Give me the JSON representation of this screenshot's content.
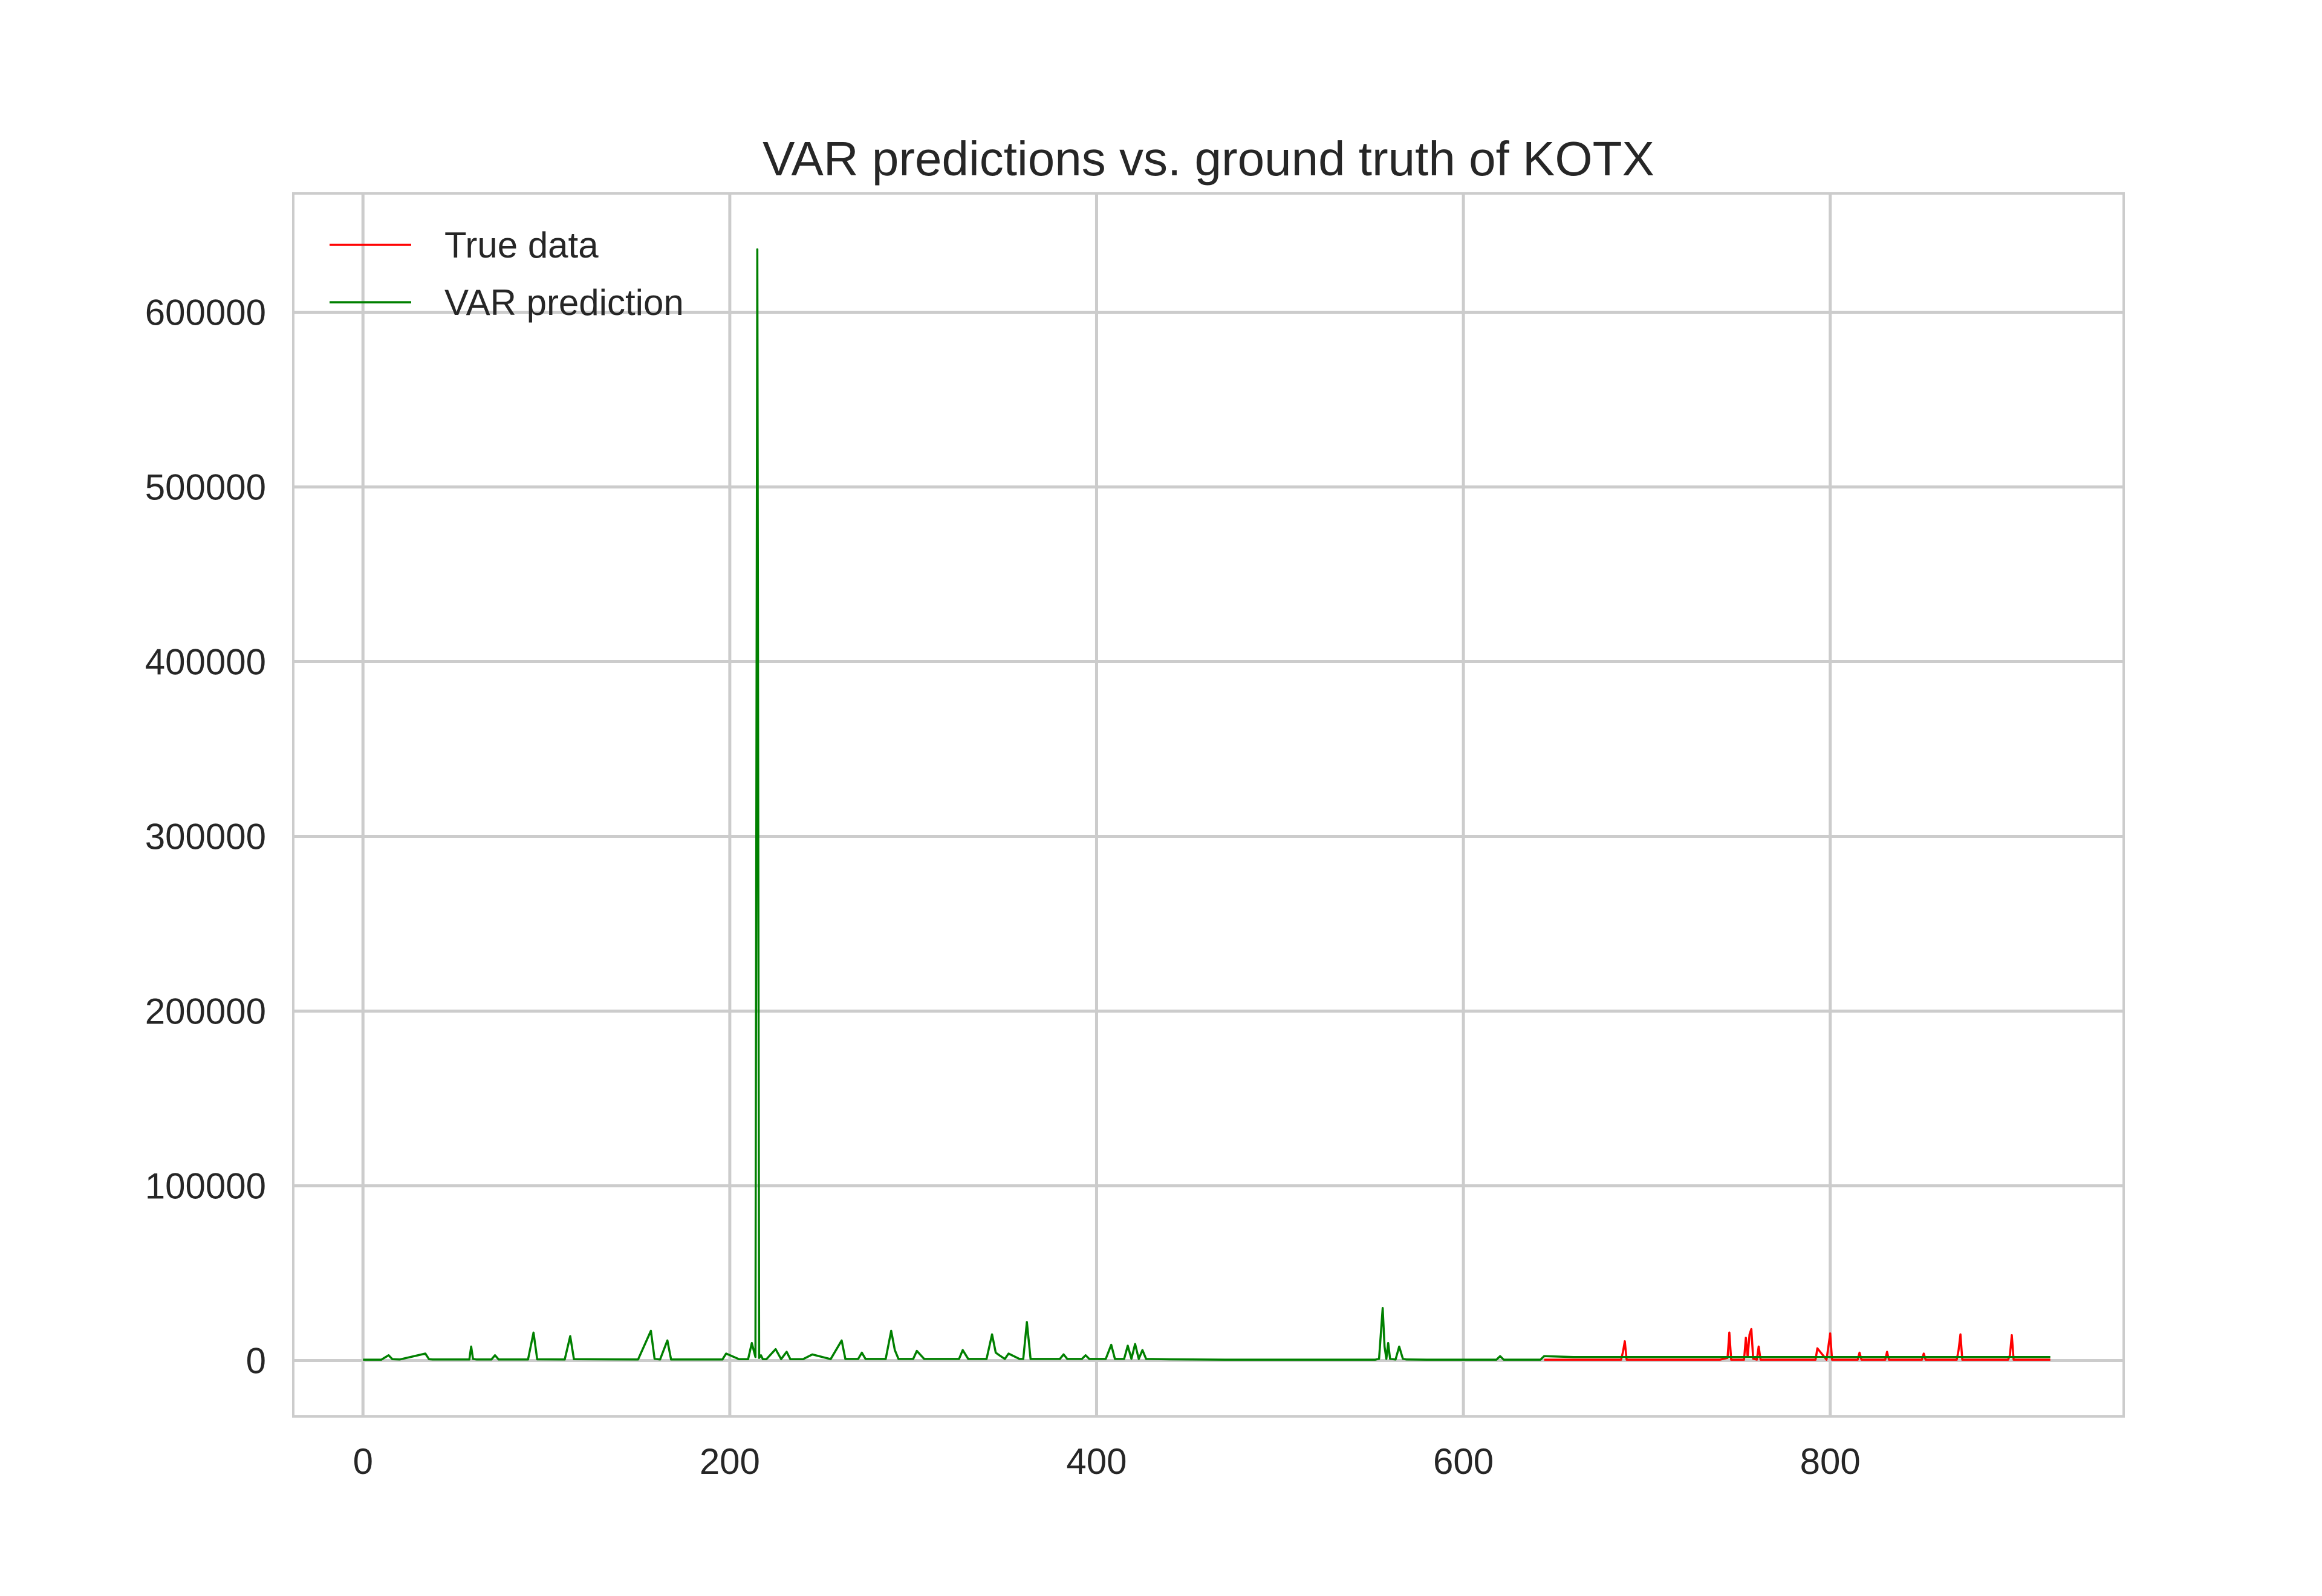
{
  "chart_data": {
    "type": "line",
    "title": "VAR predictions vs. ground truth of KOTX",
    "xlabel": "",
    "ylabel": "",
    "xlim": [
      -38,
      960
    ],
    "ylim": [
      -32000,
      668000
    ],
    "xticks": [
      0,
      200,
      400,
      600,
      800
    ],
    "yticks": [
      0,
      100000,
      200000,
      300000,
      400000,
      500000,
      600000
    ],
    "grid": true,
    "legend_position": "top-left",
    "colors": {
      "true_data": "#ff0000",
      "var_prediction": "#008000",
      "grid": "#cccccc",
      "axes_edge": "#cccccc"
    },
    "series": [
      {
        "name": "True data",
        "color": "#ff0000",
        "x": [
          644,
          686,
          687,
          688,
          689,
          700,
          740,
          744,
          745,
          746,
          753,
          754,
          755,
          756,
          757,
          758,
          760,
          761,
          762,
          792,
          793,
          798,
          799,
          800,
          801,
          815,
          816,
          817,
          830,
          831,
          832,
          850,
          851,
          852,
          869,
          870,
          871,
          872,
          897,
          898,
          899,
          900,
          920
        ],
        "y": [
          500,
          500,
          5000,
          11000,
          500,
          500,
          500,
          1500,
          16000,
          500,
          500,
          13000,
          2000,
          15000,
          18000,
          1000,
          500,
          8000,
          500,
          500,
          7000,
          500,
          8000,
          15500,
          500,
          500,
          4500,
          500,
          500,
          5000,
          500,
          500,
          4000,
          500,
          500,
          6000,
          15000,
          500,
          500,
          3000,
          14500,
          500,
          500
        ]
      },
      {
        "name": "VAR prediction",
        "color": "#008000",
        "x": [
          0,
          10,
          14,
          16,
          20,
          34,
          36,
          38,
          58,
          59,
          60,
          62,
          70,
          72,
          74,
          90,
          93,
          95,
          110,
          113,
          115,
          150,
          157,
          159,
          162,
          166,
          168,
          196,
          198,
          205,
          210,
          212,
          214,
          215,
          216,
          217,
          218,
          220,
          225,
          228,
          231,
          233,
          240,
          245,
          255,
          261,
          263,
          270,
          272,
          274,
          285,
          288,
          290,
          292,
          300,
          302,
          306,
          325,
          327,
          330,
          340,
          343,
          345,
          347,
          350,
          352,
          358,
          360,
          362,
          364,
          380,
          382,
          384,
          392,
          394,
          396,
          405,
          408,
          410,
          415,
          417,
          419,
          421,
          423,
          425,
          427,
          440,
          470,
          500,
          530,
          540,
          552,
          554,
          556,
          557,
          558,
          559,
          560,
          563,
          565,
          567,
          569,
          580,
          600,
          618,
          620,
          622,
          640,
          642,
          644,
          660,
          700,
          750,
          800,
          850,
          900,
          920
        ],
        "y": [
          500,
          500,
          3000,
          800,
          600,
          4000,
          800,
          600,
          600,
          8000,
          900,
          600,
          600,
          3000,
          600,
          600,
          16000,
          700,
          600,
          14000,
          800,
          600,
          17000,
          1000,
          600,
          11500,
          600,
          600,
          4000,
          800,
          800,
          10000,
          2000,
          636000,
          1500,
          3000,
          800,
          800,
          6500,
          800,
          5000,
          800,
          800,
          3500,
          800,
          11500,
          900,
          900,
          4500,
          900,
          900,
          17000,
          6000,
          900,
          900,
          5500,
          900,
          900,
          6000,
          900,
          900,
          15000,
          4500,
          3000,
          900,
          4000,
          900,
          900,
          22000,
          900,
          900,
          3500,
          900,
          900,
          3000,
          900,
          900,
          9000,
          900,
          900,
          8500,
          1000,
          9500,
          900,
          6000,
          900,
          700,
          500,
          500,
          500,
          500,
          500,
          1000,
          30000,
          8000,
          1000,
          10000,
          1000,
          600,
          8000,
          1000,
          600,
          500,
          500,
          500,
          2500,
          500,
          500,
          500,
          2500,
          2000,
          2000,
          2000,
          2000,
          2000,
          2000,
          2000
        ]
      }
    ]
  }
}
